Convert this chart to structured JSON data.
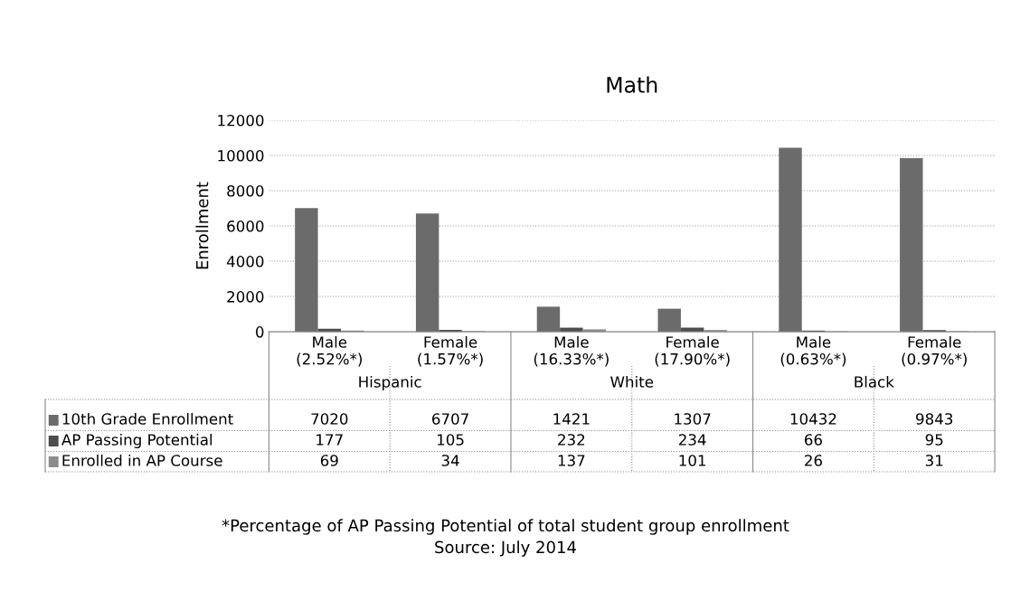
{
  "chart_data": {
    "type": "bar",
    "title": "Math",
    "ylabel": "Enrollment",
    "categories": [
      "Male\n(2.52%*)",
      "Female\n(1.57%*)",
      "Male\n(16.33%*)",
      "Female\n(17.90%*)",
      "Male\n(0.63%*)",
      "Female\n(0.97%*)"
    ],
    "series": [
      {
        "name": "10th Grade Enrollment",
        "color": "#6b6b6b",
        "values": [
          7020,
          6707,
          1421,
          1307,
          10432,
          9843
        ]
      },
      {
        "name": "AP Passing Potential",
        "color": "#4d4d4d",
        "values": [
          177,
          105,
          232,
          234,
          66,
          95
        ]
      },
      {
        "name": "Enrolled in AP Course",
        "color": "#8c8c8c",
        "values": [
          69,
          34,
          137,
          101,
          26,
          31
        ]
      }
    ],
    "ylim": [
      0,
      12000
    ],
    "yticks": [
      0,
      2000,
      4000,
      6000,
      8000,
      10000,
      12000
    ],
    "grid": "y",
    "data_labels": true,
    "legend": "bottom left",
    "annotations": [
      "Hispanic",
      "White",
      "Black",
      "*Percentage of AP Passing Potential of total student group enrollment",
      "Source: July 2014"
    ]
  }
}
